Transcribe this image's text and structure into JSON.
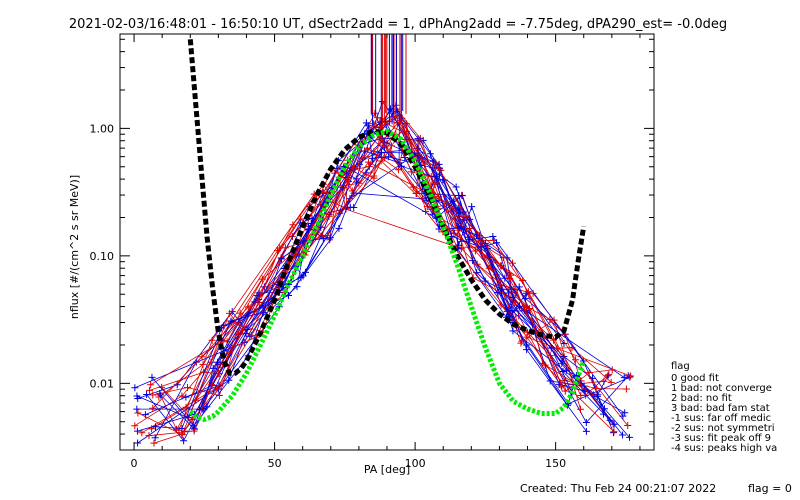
{
  "chart_data": {
    "type": "line",
    "title": "2021-02-03/16:48:01 - 16:50:10 UT, dSectr2add = 1, dPhAng2add = -7.75deg, dPA290_est=  -0.0deg",
    "xlabel": "PA [deg]",
    "ylabel": "nflux [#/(cm^2 s sr MeV)]",
    "xlim": [
      -5,
      185
    ],
    "ylim": [
      0.003,
      5.5
    ],
    "yscale": "log",
    "x_ticks": [
      0,
      50,
      100,
      150
    ],
    "y_ticks": [
      0.01,
      0.1,
      1.0
    ],
    "x_tick_labels": [
      "0",
      "50",
      "100",
      "150"
    ],
    "y_tick_labels": [
      "0.01",
      "0.10",
      "1.00"
    ],
    "series": [
      {
        "color": "#000000",
        "style": "thick-dashed",
        "x": [
          20,
          22,
          24,
          26,
          28,
          30,
          32,
          34,
          36,
          38,
          40,
          45,
          50,
          55,
          60,
          65,
          70,
          75,
          80,
          85,
          90,
          95,
          100,
          105,
          110,
          115,
          120,
          125,
          130,
          135,
          140,
          145,
          150,
          153,
          156,
          158,
          160
        ],
        "y": [
          5,
          1.5,
          0.45,
          0.14,
          0.055,
          0.025,
          0.015,
          0.012,
          0.012,
          0.013,
          0.015,
          0.025,
          0.045,
          0.09,
          0.17,
          0.3,
          0.48,
          0.68,
          0.85,
          0.95,
          0.92,
          0.75,
          0.5,
          0.3,
          0.17,
          0.1,
          0.065,
          0.045,
          0.035,
          0.029,
          0.026,
          0.024,
          0.023,
          0.026,
          0.045,
          0.09,
          0.17
        ]
      },
      {
        "color": "#00ee00",
        "style": "thick-dotted",
        "x": [
          20,
          22,
          25,
          28,
          30,
          35,
          40,
          45,
          50,
          55,
          60,
          65,
          70,
          75,
          80,
          85,
          90,
          95,
          100,
          105,
          110,
          115,
          120,
          125,
          130,
          135,
          140,
          145,
          150,
          153,
          156,
          160
        ],
        "y": [
          0.006,
          0.0055,
          0.0052,
          0.0055,
          0.006,
          0.008,
          0.012,
          0.02,
          0.034,
          0.06,
          0.1,
          0.17,
          0.3,
          0.5,
          0.72,
          0.88,
          0.95,
          0.82,
          0.55,
          0.32,
          0.17,
          0.085,
          0.04,
          0.019,
          0.01,
          0.0072,
          0.0063,
          0.0058,
          0.0058,
          0.0065,
          0.0085,
          0.015
        ]
      }
    ],
    "legend": {
      "placement": "right",
      "title": "flag",
      "entries": [
        " 0 good fit",
        " 1 bad: not converge",
        " 2 bad: no fit",
        " 3 bad: bad fam stat",
        "-1 sus: far off medic",
        "-2 sus: not symmetri",
        "-3 sus: fit peak off 9",
        "-4 sus: peaks high va"
      ]
    },
    "footer": {
      "created": "Created: Thu Feb 24 00:21:07 2022",
      "flag": "flag = 0"
    },
    "grid": false,
    "measurement_colors": {
      "red": "#dd0000",
      "blue": "#0000dd"
    }
  }
}
